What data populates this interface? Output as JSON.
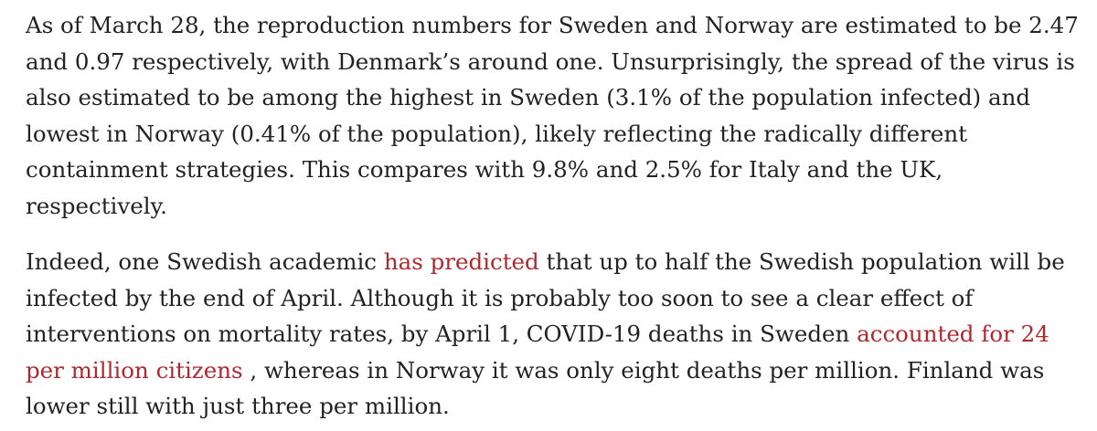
{
  "article": {
    "paragraph1": "As of March 28, the reproduction numbers for Sweden and Norway are estimated to be 2.47 and 0.97 respectively, with Denmark’s around one. Unsurprisingly, the spread of the virus is also estimated to be among the highest in Sweden (3.1% of the population infected) and lowest in Norway (0.41% of the population), likely reflecting the radically different containment strategies. This compares with 9.8% and 2.5% for Italy and the UK, respectively.",
    "paragraph2": {
      "text_1": "Indeed, one Swedish academic ",
      "link_1": "has predicted",
      "text_2": " that up to half the Swedish population will be infected by the end of April. Although it is probably too soon to see a clear effect of interventions on mortality rates, by April 1, COVID-19 deaths in Sweden ",
      "link_2": "accounted for 24 per million citizens",
      "text_3": " , whereas in Norway it was only eight deaths per million. Finland was lower still with just three per million."
    },
    "link_color": "#b0282f",
    "text_color": "#222222"
  }
}
